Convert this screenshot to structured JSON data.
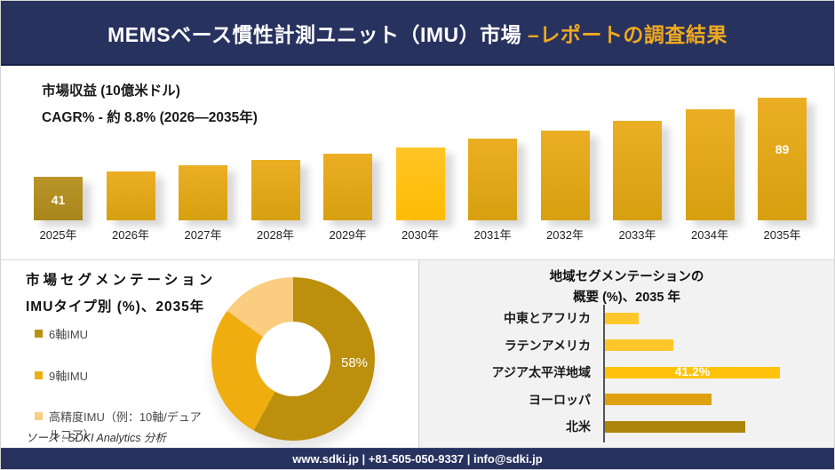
{
  "header": {
    "title_white": "MEMSベース慣性計測ユニット（IMU）市場 ",
    "title_accent": "–レポートの調査結果"
  },
  "colors": {
    "navy": "#28325F",
    "accent_yellow": "#F0A91E",
    "panel_gray": "#F2F2F2"
  },
  "chart_data": [
    {
      "id": "revenue",
      "type": "bar",
      "title": "市場収益 (10億米ドル)",
      "subtitle": "CAGR% - 約 8.8% (2026―2035年)",
      "categories": [
        "2025年",
        "2026年",
        "2027年",
        "2028年",
        "2029年",
        "2030年",
        "2031年",
        "2032年",
        "2033年",
        "2034年",
        "2035年"
      ],
      "values": [
        41,
        44,
        48,
        51,
        55,
        59,
        64,
        69,
        75,
        82,
        89
      ],
      "data_labels": [
        "41",
        "",
        "",
        "",
        "",
        "",
        "",
        "",
        "",
        "",
        "89"
      ],
      "ylim": [
        0,
        100
      ],
      "grid": false,
      "bar_colors": {
        "default": "linear-gradient(180deg,#EBAE24,#D7A00F)",
        "2025年": "linear-gradient(180deg,#BA9428,#A9861B)",
        "2030年": "linear-gradient(180deg,#FFC527,#FDBB02)"
      }
    },
    {
      "id": "imu-type-donut",
      "type": "pie",
      "title_line1": "市場セグメンテーション",
      "title_line2": "IMUタイプ別 (%)、2035年",
      "slices": [
        {
          "label": "6軸IMU",
          "value": 58,
          "data_label": "58%",
          "color": "#BC8F0C"
        },
        {
          "label": "9軸IMU",
          "value": 27,
          "data_label": "",
          "color": "#EFAD10"
        },
        {
          "label": "高精度IMU（例：10軸/デュアルコア）",
          "value": 15,
          "data_label": "",
          "color": "#FACD80"
        }
      ],
      "legend_position": "left",
      "note": "values for 9軸IMU and 高精度IMU estimated from arc angles; only 58% labeled"
    },
    {
      "id": "region",
      "type": "bar",
      "orientation": "horizontal",
      "title_line1": "地域セグメンテーションの",
      "title_line2": "概要 (%)、2035 年",
      "categories": [
        "中東とアフリカ",
        "ラテンアメリカ",
        "アジア太平洋地域",
        "ヨーロッパ",
        "北米"
      ],
      "values": [
        8,
        16,
        41.2,
        25,
        33
      ],
      "data_labels": [
        "",
        "",
        "41.2%",
        "",
        ""
      ],
      "bar_colors": [
        "#FFC72C",
        "#FFC72C",
        "#FFC30B",
        "#DFA112",
        "#AD850A"
      ],
      "note": "only 41.2% labeled; other values estimated from bar lengths"
    }
  ],
  "source": "ソース : SDKI Analytics 分析",
  "footer": {
    "text": "www.sdki.jp | +81-505-050-9337 | info@sdki.jp"
  }
}
